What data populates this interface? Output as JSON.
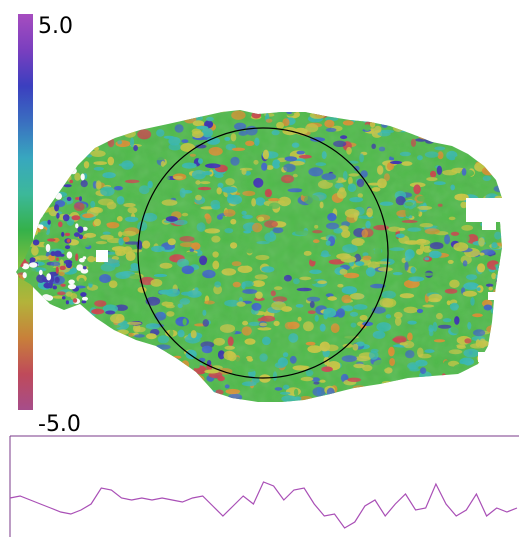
{
  "colorbar": {
    "max_label": "5.0",
    "min_label": "-5.0",
    "stops": [
      "#a64d8a",
      "#bf4a5a",
      "#c8803a",
      "#b3b33a",
      "#7fbf3f",
      "#35b14a",
      "#3cb89a",
      "#38a7bf",
      "#3a6fc0",
      "#3b3fbf",
      "#7a3fbf",
      "#a64dbf"
    ]
  },
  "map": {
    "colors": {
      "base": "#4fba4a",
      "yellow": "#c6c640",
      "orange": "#d98f30",
      "red": "#c9434a",
      "cyan": "#34b8b0",
      "blue": "#3a62c8",
      "indigo": "#3a2fb0",
      "circle": "#000000"
    }
  },
  "profile": {
    "line_color": "#a94fb6",
    "frame_color": "#7a3a8a",
    "values": [
      0.5,
      0.55,
      0.45,
      0.35,
      0.25,
      0.15,
      0.1,
      0.2,
      0.35,
      0.75,
      0.7,
      0.5,
      0.45,
      0.5,
      0.45,
      0.5,
      0.45,
      0.4,
      0.5,
      0.55,
      0.3,
      0.05,
      0.3,
      0.55,
      0.35,
      0.9,
      0.8,
      0.45,
      0.7,
      0.75,
      0.35,
      0.05,
      0.1,
      -0.25,
      -0.1,
      0.3,
      0.45,
      0.05,
      0.35,
      0.6,
      0.2,
      0.25,
      0.85,
      0.35,
      0.05,
      0.2,
      0.6,
      0.05,
      0.25,
      0.15,
      0.25
    ]
  }
}
